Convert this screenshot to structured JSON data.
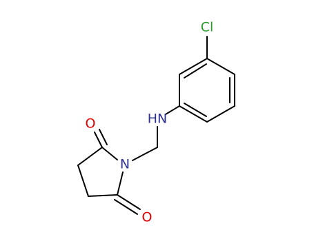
{
  "atoms": {
    "chlorine": "Cl",
    "amine": "HN",
    "imide_nitrogen": "N",
    "oxygen_top": "O",
    "oxygen_bottom": "O"
  }
}
